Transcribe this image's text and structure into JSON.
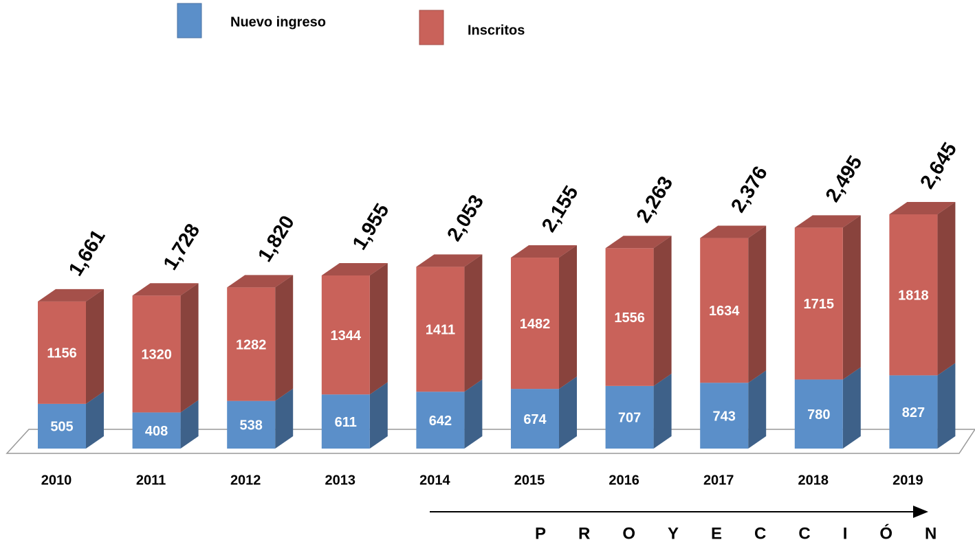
{
  "chart_data": {
    "type": "bar",
    "stacked": true,
    "categories": [
      "2010",
      "2011",
      "2012",
      "2013",
      "2014",
      "2015",
      "2016",
      "2017",
      "2018",
      "2019"
    ],
    "series": [
      {
        "name": "Nuevo ingreso",
        "color": "#5b8fc9",
        "values": [
          505,
          408,
          538,
          611,
          642,
          674,
          707,
          743,
          780,
          827
        ]
      },
      {
        "name": "Inscritos",
        "color": "#c9625a",
        "values": [
          1156,
          1320,
          1282,
          1344,
          1411,
          1482,
          1556,
          1634,
          1715,
          1818
        ]
      }
    ],
    "totals": {
      "values": [
        1661,
        1728,
        1820,
        1955,
        2053,
        2155,
        2263,
        2376,
        2495,
        2645
      ],
      "value_labels": [
        "1,661",
        "1,728",
        "1,820",
        "1,955",
        "2,053",
        "2,155",
        "2,263",
        "2,376",
        "2,495",
        "2,645"
      ]
    },
    "annotation": "PROYECCIÓN"
  }
}
